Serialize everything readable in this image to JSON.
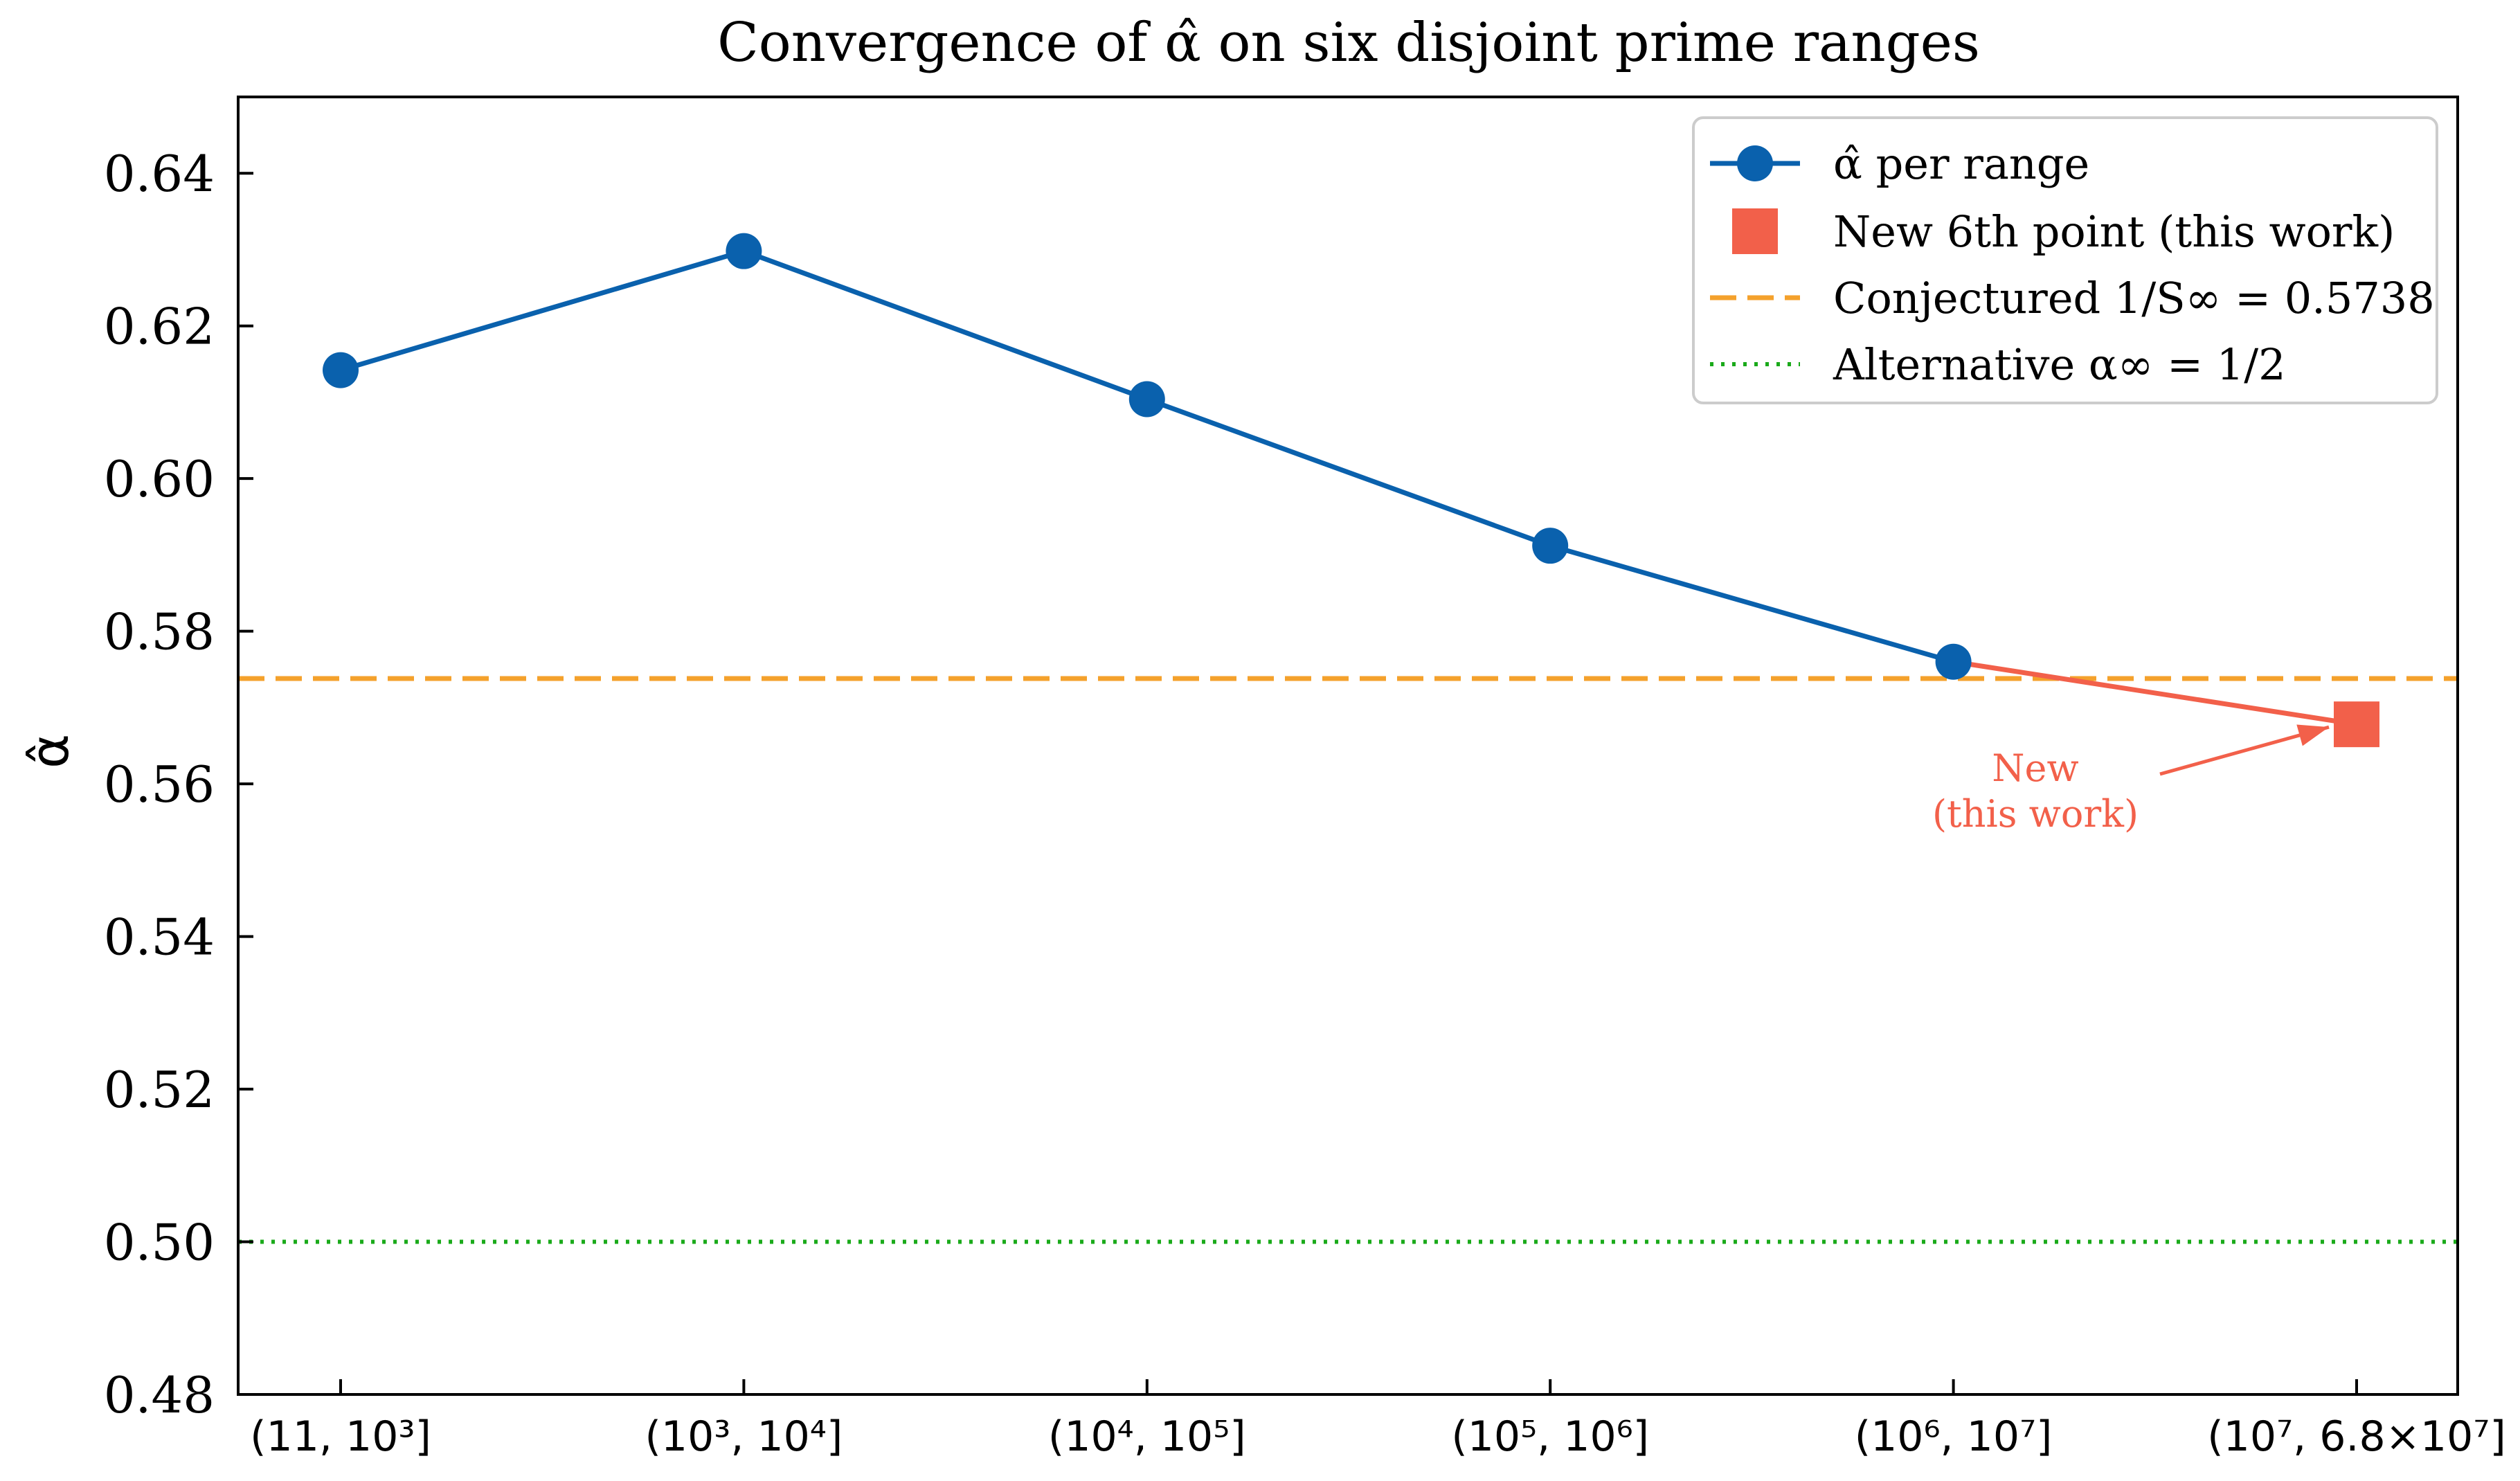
{
  "chart_data": {
    "type": "line",
    "title": "Convergence of α̂ on six disjoint prime ranges",
    "xlabel": "",
    "ylabel": "α̂",
    "categories": [
      "(11, 10³]",
      "(10³, 10⁴]",
      "(10⁴, 10⁵]",
      "(10⁵, 10⁶]",
      "(10⁶, 10⁷]",
      "(10⁷, 6.8×10⁷]"
    ],
    "ylim": [
      0.48,
      0.65
    ],
    "yticks": [
      "0.48",
      "0.50",
      "0.52",
      "0.54",
      "0.56",
      "0.58",
      "0.60",
      "0.62",
      "0.64"
    ],
    "grid": false,
    "legend_position": "top-right",
    "series": [
      {
        "name": "α̂ per range",
        "values": [
          0.6142,
          0.6298,
          0.6104,
          0.5912,
          0.576,
          null
        ],
        "color": "#0a61ad",
        "marker": "circle",
        "line": "solid"
      },
      {
        "name": "New 6th point (this work)",
        "values": [
          null,
          null,
          null,
          null,
          0.576,
          0.5678
        ],
        "color": "#f2604a",
        "marker": "square",
        "line": "solid"
      }
    ],
    "reference_lines": [
      {
        "name": "Conjectured 1/S∞ = 0.5738",
        "y": 0.5738,
        "color": "#f4a12c",
        "style": "dashed"
      },
      {
        "name": "Alternative α∞ = 1/2",
        "y": 0.5,
        "color": "#1aaa1a",
        "style": "dotted"
      }
    ],
    "annotation": {
      "lines": [
        "New",
        "(this work)"
      ],
      "target_category": 5,
      "target_y": 0.5678,
      "color": "#f2604a"
    }
  }
}
